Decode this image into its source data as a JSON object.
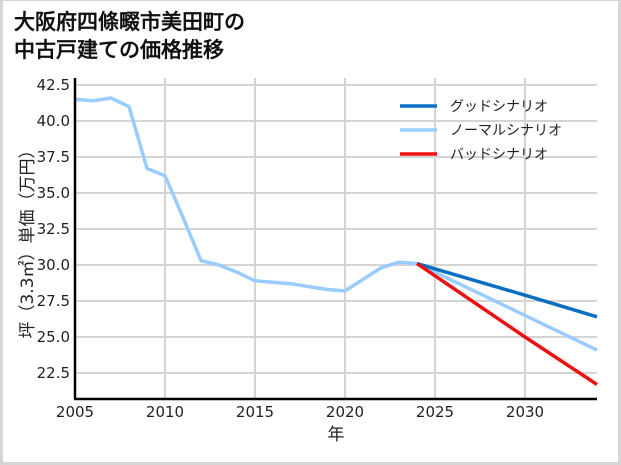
{
  "title": {
    "line1": "大阪府四條畷市美田町の",
    "line2": "中古戸建ての価格推移"
  },
  "chart_data": {
    "type": "line",
    "title": "大阪府四條畷市美田町の中古戸建ての価格推移",
    "xlabel": "年",
    "ylabel": "坪（3.3㎡）単価（万円）",
    "xlim": [
      2005,
      2034
    ],
    "ylim": [
      20.7,
      42.5
    ],
    "grid": true,
    "legend_position": "upper right",
    "x_ticks": [
      2005,
      2010,
      2015,
      2020,
      2025,
      2030
    ],
    "y_ticks": [
      22.5,
      25.0,
      27.5,
      30.0,
      32.5,
      35.0,
      37.5,
      40.0,
      42.5
    ],
    "series": [
      {
        "name": "グッドシナリオ",
        "color": "#0a6fc2",
        "x": [
          2024,
          2030,
          2034
        ],
        "values": [
          30.1,
          27.9,
          26.4
        ]
      },
      {
        "name": "ノーマルシナリオ",
        "color": "#99ccff",
        "x": [
          2005,
          2006,
          2007,
          2008,
          2009,
          2010,
          2011,
          2012,
          2013,
          2014,
          2015,
          2016,
          2017,
          2018,
          2019,
          2020,
          2021,
          2022,
          2023,
          2024,
          2030,
          2034
        ],
        "values": [
          41.5,
          41.4,
          41.6,
          41.0,
          36.7,
          36.2,
          33.3,
          30.3,
          30.0,
          29.5,
          28.9,
          28.8,
          28.7,
          28.5,
          28.3,
          28.2,
          29.0,
          29.8,
          30.2,
          30.1,
          26.5,
          24.1
        ]
      },
      {
        "name": "バッドシナリオ",
        "color": "#ee1111",
        "x": [
          2024,
          2030,
          2034
        ],
        "values": [
          30.1,
          25.0,
          21.7
        ]
      }
    ]
  },
  "axes": {
    "x_tick_labels": [
      "2005",
      "2010",
      "2015",
      "2020",
      "2025",
      "2030"
    ],
    "y_tick_labels": [
      "42.5",
      "40.0",
      "37.5",
      "35.0",
      "32.5",
      "30.0",
      "27.5",
      "25.0",
      "22.5"
    ],
    "xlabel": "年",
    "ylabel": "坪（3.3㎡）単価（万円）"
  },
  "legend": [
    {
      "label": "グッドシナリオ",
      "color": "#0a6fc2"
    },
    {
      "label": "ノーマルシナリオ",
      "color": "#99ccff"
    },
    {
      "label": "バッドシナリオ",
      "color": "#ee1111"
    }
  ]
}
